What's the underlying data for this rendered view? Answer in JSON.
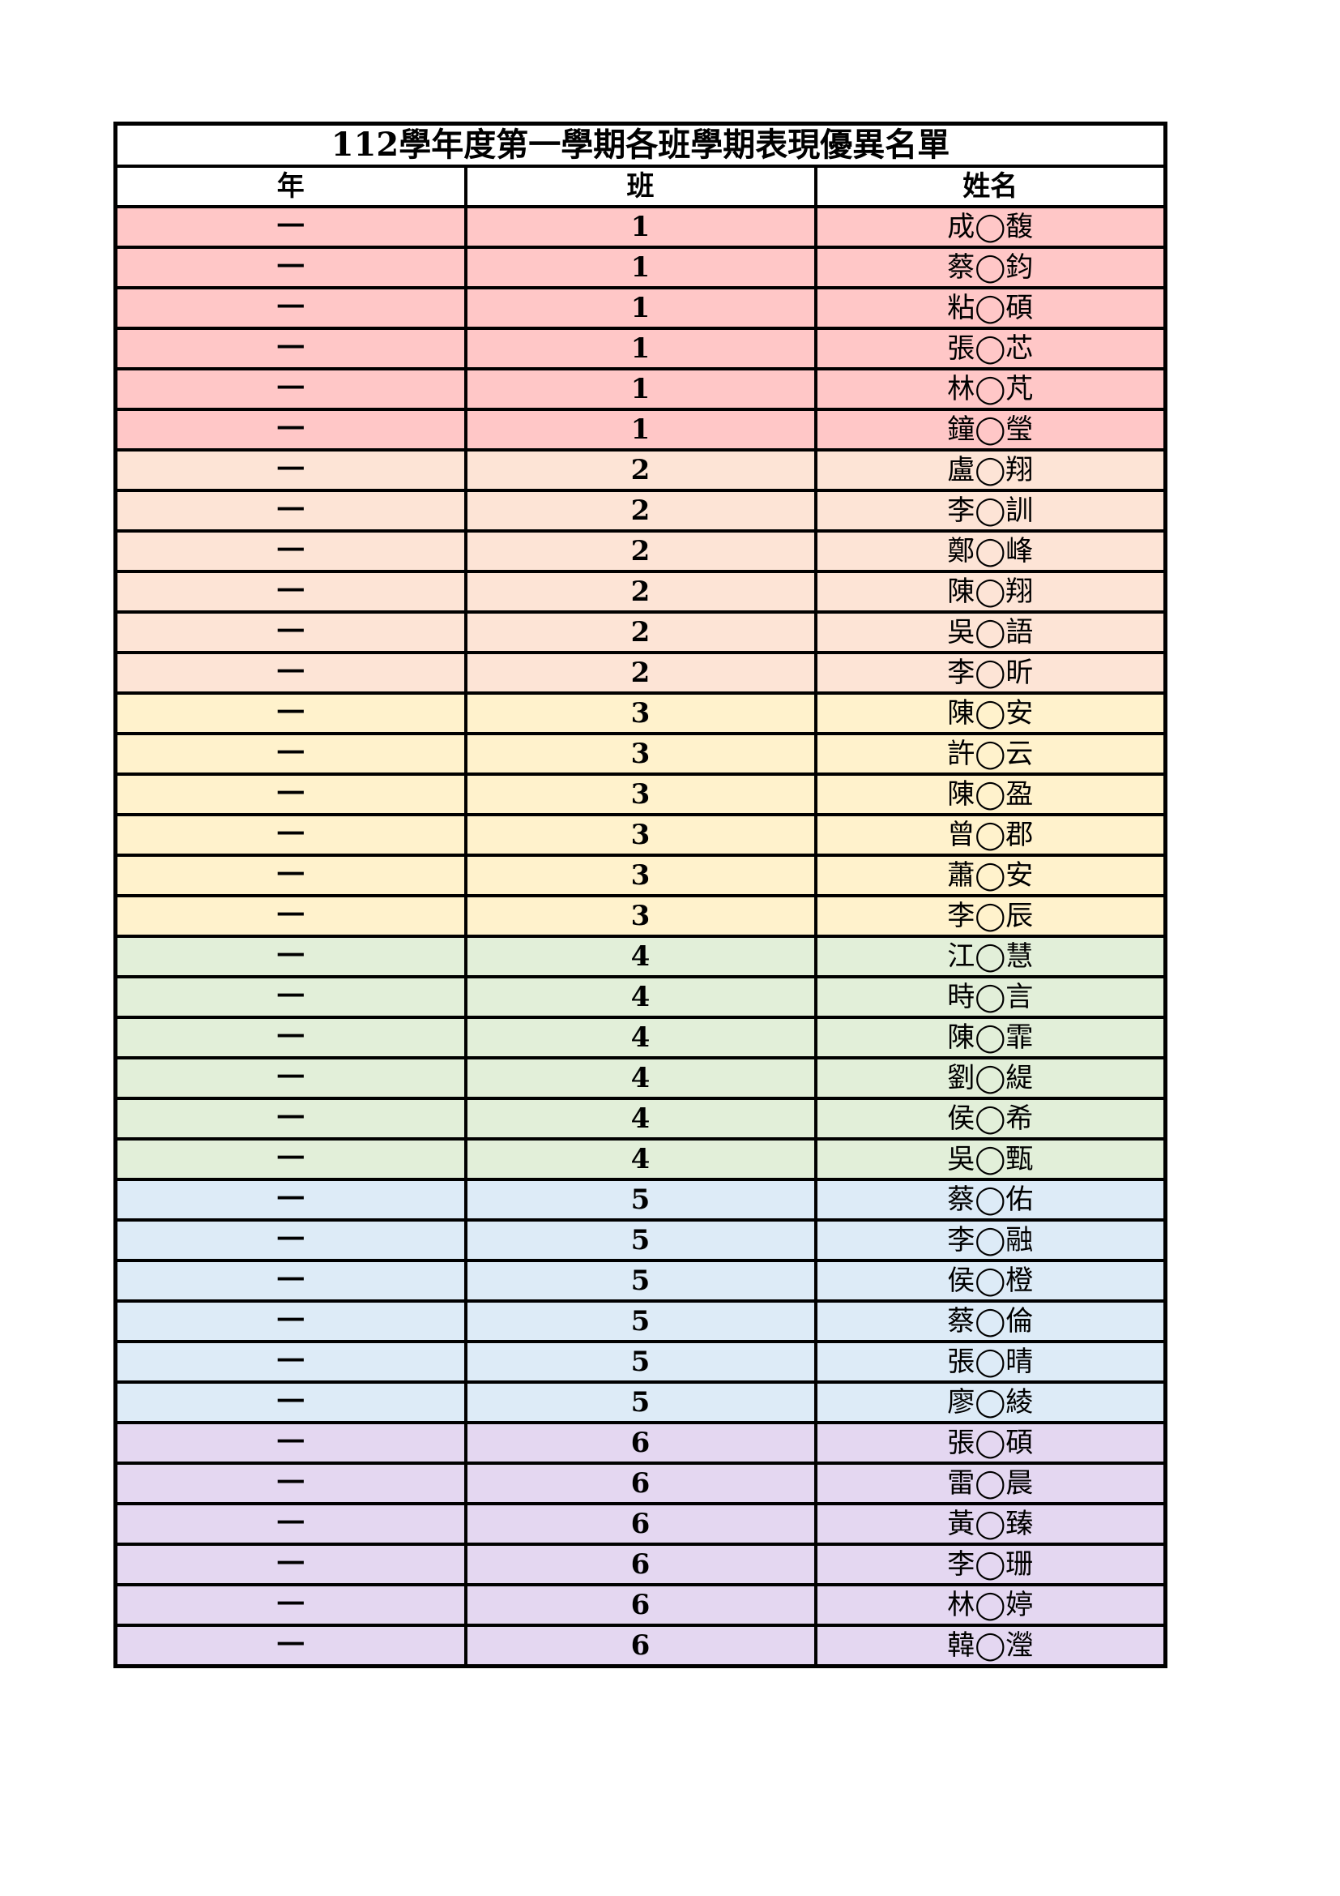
{
  "title": "112學年度第一學期各班學期表現優異名單",
  "headers": [
    "年",
    "班",
    "姓名"
  ],
  "class_colors": {
    "1": "#ffc7c7",
    "2": "#fde4d6",
    "3": "#fff2cc",
    "4": "#e2efd9",
    "5": "#ddebf7",
    "6": "#e4d7f1"
  },
  "rows": [
    {
      "grade": "一",
      "class": "1",
      "name": "成◯馥"
    },
    {
      "grade": "一",
      "class": "1",
      "name": "蔡◯鈞"
    },
    {
      "grade": "一",
      "class": "1",
      "name": "粘◯碩"
    },
    {
      "grade": "一",
      "class": "1",
      "name": "張◯芯"
    },
    {
      "grade": "一",
      "class": "1",
      "name": "林◯芃"
    },
    {
      "grade": "一",
      "class": "1",
      "name": "鐘◯瑩"
    },
    {
      "grade": "一",
      "class": "2",
      "name": "盧◯翔"
    },
    {
      "grade": "一",
      "class": "2",
      "name": "李◯訓"
    },
    {
      "grade": "一",
      "class": "2",
      "name": "鄭◯峰"
    },
    {
      "grade": "一",
      "class": "2",
      "name": "陳◯翔"
    },
    {
      "grade": "一",
      "class": "2",
      "name": "吳◯語"
    },
    {
      "grade": "一",
      "class": "2",
      "name": "李◯昕"
    },
    {
      "grade": "一",
      "class": "3",
      "name": "陳◯安"
    },
    {
      "grade": "一",
      "class": "3",
      "name": "許◯云"
    },
    {
      "grade": "一",
      "class": "3",
      "name": "陳◯盈"
    },
    {
      "grade": "一",
      "class": "3",
      "name": "曾◯郡"
    },
    {
      "grade": "一",
      "class": "3",
      "name": "蕭◯安"
    },
    {
      "grade": "一",
      "class": "3",
      "name": "李◯辰"
    },
    {
      "grade": "一",
      "class": "4",
      "name": "江◯慧"
    },
    {
      "grade": "一",
      "class": "4",
      "name": "時◯言"
    },
    {
      "grade": "一",
      "class": "4",
      "name": "陳◯霏"
    },
    {
      "grade": "一",
      "class": "4",
      "name": "劉◯緹"
    },
    {
      "grade": "一",
      "class": "4",
      "name": "侯◯希"
    },
    {
      "grade": "一",
      "class": "4",
      "name": "吳◯甄"
    },
    {
      "grade": "一",
      "class": "5",
      "name": "蔡◯佑"
    },
    {
      "grade": "一",
      "class": "5",
      "name": "李◯融"
    },
    {
      "grade": "一",
      "class": "5",
      "name": "侯◯橙"
    },
    {
      "grade": "一",
      "class": "5",
      "name": "蔡◯倫"
    },
    {
      "grade": "一",
      "class": "5",
      "name": "張◯晴"
    },
    {
      "grade": "一",
      "class": "5",
      "name": "廖◯綾"
    },
    {
      "grade": "一",
      "class": "6",
      "name": "張◯碩"
    },
    {
      "grade": "一",
      "class": "6",
      "name": "雷◯晨"
    },
    {
      "grade": "一",
      "class": "6",
      "name": "黃◯臻"
    },
    {
      "grade": "一",
      "class": "6",
      "name": "李◯珊"
    },
    {
      "grade": "一",
      "class": "6",
      "name": "林◯婷"
    },
    {
      "grade": "一",
      "class": "6",
      "name": "韓◯瀅"
    }
  ]
}
